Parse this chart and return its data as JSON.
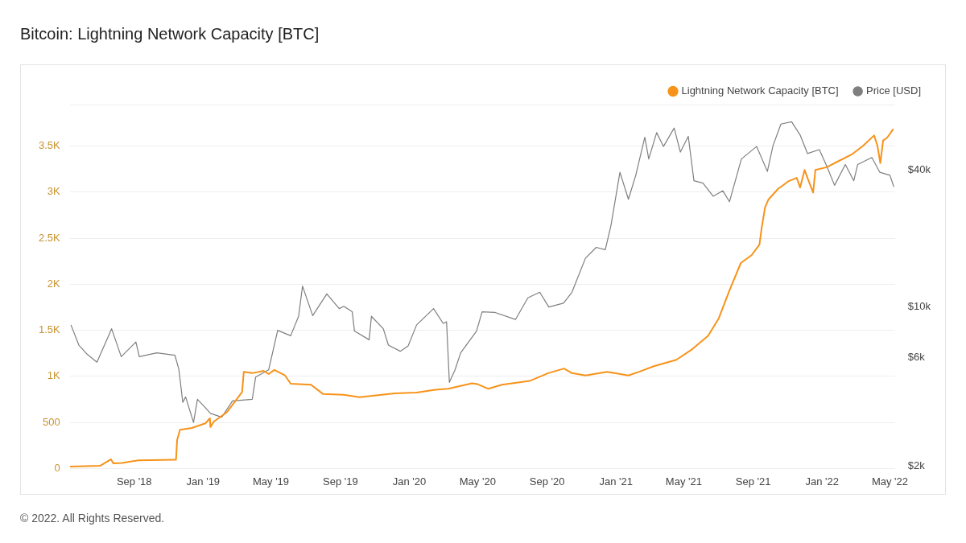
{
  "chart_data": {
    "type": "line",
    "title": "Bitcoin: Lightning Network Capacity [BTC]",
    "annotations": [
      "© 2022. All Rights Reserved."
    ],
    "xlim": [
      "2018-05-10",
      "2022-05-10"
    ],
    "xticks": [
      {
        "value": "2018-09-01",
        "label": "Sep '18"
      },
      {
        "value": "2019-01-01",
        "label": "Jan '19"
      },
      {
        "value": "2019-05-01",
        "label": "May '19"
      },
      {
        "value": "2019-09-01",
        "label": "Sep '19"
      },
      {
        "value": "2020-01-01",
        "label": "Jan '20"
      },
      {
        "value": "2020-05-01",
        "label": "May '20"
      },
      {
        "value": "2020-09-01",
        "label": "Sep '20"
      },
      {
        "value": "2021-01-01",
        "label": "Jan '21"
      },
      {
        "value": "2021-05-01",
        "label": "May '21"
      },
      {
        "value": "2021-09-01",
        "label": "Sep '21"
      },
      {
        "value": "2022-01-01",
        "label": "Jan '22"
      },
      {
        "value": "2022-05-01",
        "label": "May '22"
      }
    ],
    "ylim": [
      0,
      3950
    ],
    "yticks": [
      0,
      500,
      {
        "value": 1000,
        "label": "1K"
      },
      {
        "value": 1500,
        "label": "1.5K"
      },
      {
        "value": 2000,
        "label": "2K"
      },
      {
        "value": 2500,
        "label": "2.5K"
      },
      {
        "value": 3000,
        "label": "3K"
      },
      {
        "value": 3500,
        "label": "3.5K"
      }
    ],
    "y2lim": [
      1950,
      78000
    ],
    "y2ticks": [
      {
        "value": 2000,
        "label": "$2k"
      },
      {
        "value": 6000,
        "label": "$6k"
      },
      {
        "value": 10000,
        "label": "$10k"
      },
      {
        "value": 40000,
        "label": "$40k"
      }
    ],
    "log": "y2",
    "grid": "y",
    "legend": "top right",
    "marker": "none",
    "line_style": "solid",
    "series": [
      {
        "name": "Lightning Network Capacity [BTC]",
        "color": "#f7931a",
        "x": [
          "2018-05-10",
          "2018-07-03",
          "2018-07-22",
          "2018-07-26",
          "2018-08-10",
          "2018-09-08",
          "2018-11-10",
          "2018-11-14",
          "2018-11-16",
          "2018-11-21",
          "2018-12-12",
          "2019-01-05",
          "2019-01-13",
          "2019-01-14",
          "2019-01-20",
          "2019-02-12",
          "2019-03-11",
          "2019-03-14",
          "2019-03-29",
          "2019-04-18",
          "2019-04-27",
          "2019-05-07",
          "2019-05-26",
          "2019-06-05",
          "2019-07-11",
          "2019-08-01",
          "2019-09-07",
          "2019-10-05",
          "2019-12-06",
          "2020-01-14",
          "2020-02-16",
          "2020-03-10",
          "2020-04-21",
          "2020-05-01",
          "2020-05-20",
          "2020-06-13",
          "2020-08-01",
          "2020-09-03",
          "2020-10-01",
          "2020-10-15",
          "2020-11-08",
          "2020-12-16",
          "2021-01-23",
          "2021-02-11",
          "2021-03-09",
          "2021-04-18",
          "2021-05-16",
          "2021-06-13",
          "2021-07-02",
          "2021-07-21",
          "2021-08-10",
          "2021-08-29",
          "2021-09-12",
          "2021-09-16",
          "2021-09-22",
          "2021-09-28",
          "2021-10-15",
          "2021-11-03",
          "2021-11-17",
          "2021-11-23",
          "2021-12-01",
          "2021-12-06",
          "2021-12-16",
          "2021-12-20",
          "2022-01-09",
          "2022-01-28",
          "2022-02-24",
          "2022-03-14",
          "2022-04-03",
          "2022-04-09",
          "2022-04-14",
          "2022-04-19",
          "2022-04-26",
          "2022-05-07"
        ],
        "values": [
          20,
          30,
          100,
          55,
          60,
          89,
          95,
          95,
          310,
          420,
          440,
          490,
          545,
          450,
          510,
          610,
          830,
          1050,
          1035,
          1060,
          1025,
          1070,
          1010,
          920,
          910,
          810,
          800,
          775,
          815,
          825,
          855,
          865,
          925,
          915,
          865,
          910,
          950,
          1035,
          1085,
          1035,
          1010,
          1050,
          1010,
          1050,
          1110,
          1180,
          1295,
          1440,
          1630,
          1935,
          2230,
          2315,
          2430,
          2615,
          2835,
          2920,
          3035,
          3120,
          3155,
          3050,
          3240,
          3155,
          2995,
          3240,
          3270,
          3330,
          3415,
          3500,
          3615,
          3500,
          3315,
          3560,
          3590,
          3685
        ]
      },
      {
        "name": "Price [USD]",
        "color": "#7f7f7f",
        "axis": "y2",
        "x": [
          "2018-05-12",
          "2018-05-26",
          "2018-06-10",
          "2018-06-27",
          "2018-07-23",
          "2018-08-09",
          "2018-09-04",
          "2018-09-10",
          "2018-10-11",
          "2018-11-12",
          "2018-11-19",
          "2018-11-26",
          "2018-12-01",
          "2018-12-15",
          "2018-12-22",
          "2019-01-05",
          "2019-01-14",
          "2019-02-03",
          "2019-02-22",
          "2019-03-29",
          "2019-04-04",
          "2019-04-27",
          "2019-05-13",
          "2019-06-05",
          "2019-06-19",
          "2019-06-26",
          "2019-07-14",
          "2019-08-08",
          "2019-08-30",
          "2019-09-07",
          "2019-09-22",
          "2019-09-26",
          "2019-10-22",
          "2019-10-26",
          "2019-11-16",
          "2019-11-25",
          "2019-12-16",
          "2019-12-30",
          "2020-01-14",
          "2020-02-13",
          "2020-03-01",
          "2020-03-07",
          "2020-03-12",
          "2020-03-22",
          "2020-04-01",
          "2020-04-29",
          "2020-05-09",
          "2020-06-01",
          "2020-07-07",
          "2020-07-29",
          "2020-08-19",
          "2020-09-04",
          "2020-09-30",
          "2020-10-15",
          "2020-11-08",
          "2020-11-27",
          "2020-12-13",
          "2020-12-23",
          "2021-01-08",
          "2021-01-23",
          "2021-02-05",
          "2021-02-21",
          "2021-02-28",
          "2021-03-14",
          "2021-03-26",
          "2021-04-14",
          "2021-04-25",
          "2021-05-09",
          "2021-05-19",
          "2021-06-04",
          "2021-06-22",
          "2021-07-09",
          "2021-07-21",
          "2021-08-11",
          "2021-09-07",
          "2021-09-26",
          "2021-10-06",
          "2021-10-20",
          "2021-11-08",
          "2021-11-23",
          "2021-12-06",
          "2021-12-27",
          "2022-01-09",
          "2022-01-23",
          "2022-02-11",
          "2022-02-26",
          "2022-03-05",
          "2022-03-30",
          "2022-04-13",
          "2022-05-01",
          "2022-05-08"
        ],
        "values": [
          8360,
          6810,
          6200,
          5730,
          8040,
          6060,
          7030,
          6060,
          6300,
          6150,
          5340,
          3810,
          4030,
          3110,
          3930,
          3610,
          3410,
          3280,
          3870,
          3930,
          4930,
          5300,
          7910,
          7490,
          9120,
          12390,
          9180,
          11450,
          9860,
          10090,
          9550,
          7850,
          7190,
          9120,
          8040,
          6810,
          6400,
          6760,
          8360,
          9860,
          8490,
          8630,
          4670,
          5300,
          6300,
          7850,
          9550,
          9480,
          8830,
          11000,
          11640,
          10020,
          10420,
          11640,
          16450,
          18340,
          17910,
          22850,
          39300,
          29860,
          38100,
          56000,
          44950,
          58700,
          51000,
          61500,
          48200,
          56500,
          36050,
          35200,
          30800,
          32550,
          29150,
          44950,
          51000,
          39600,
          51400,
          64000,
          65500,
          57300,
          47500,
          49400,
          41900,
          34400,
          42500,
          36050,
          42500,
          45600,
          39300,
          38100,
          33900
        ]
      }
    ]
  }
}
